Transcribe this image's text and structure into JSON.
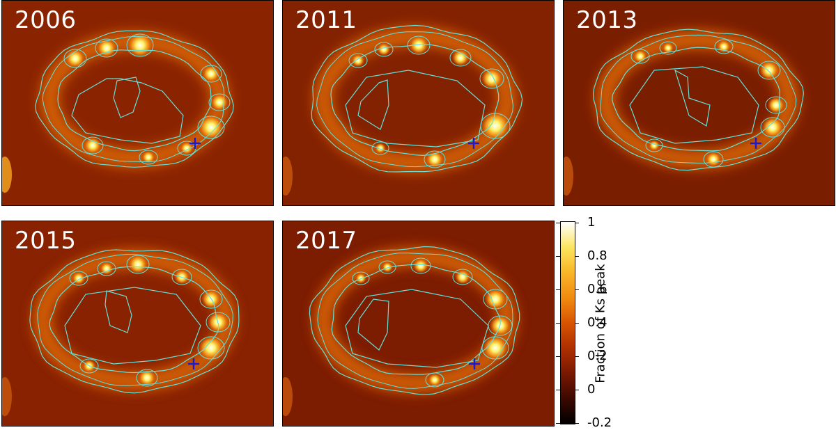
{
  "panels": [
    {
      "id": "p1",
      "year": "2006",
      "variant": 0
    },
    {
      "id": "p2",
      "year": "2011",
      "variant": 1
    },
    {
      "id": "p3",
      "year": "2013",
      "variant": 2
    },
    {
      "id": "p4",
      "year": "2015",
      "variant": 3
    },
    {
      "id": "p5",
      "year": "2017",
      "variant": 4
    }
  ],
  "colorbar": {
    "label": "Fraction of Ks peak",
    "ticks": [
      "1",
      "0.8",
      "0.6",
      "0.4",
      "0.2",
      "0",
      "-0.2"
    ],
    "range": [
      -0.2,
      1
    ]
  },
  "colors": {
    "background": "#8a2000",
    "contour": "#66e0d8",
    "marker": "#1a1ad0"
  }
}
